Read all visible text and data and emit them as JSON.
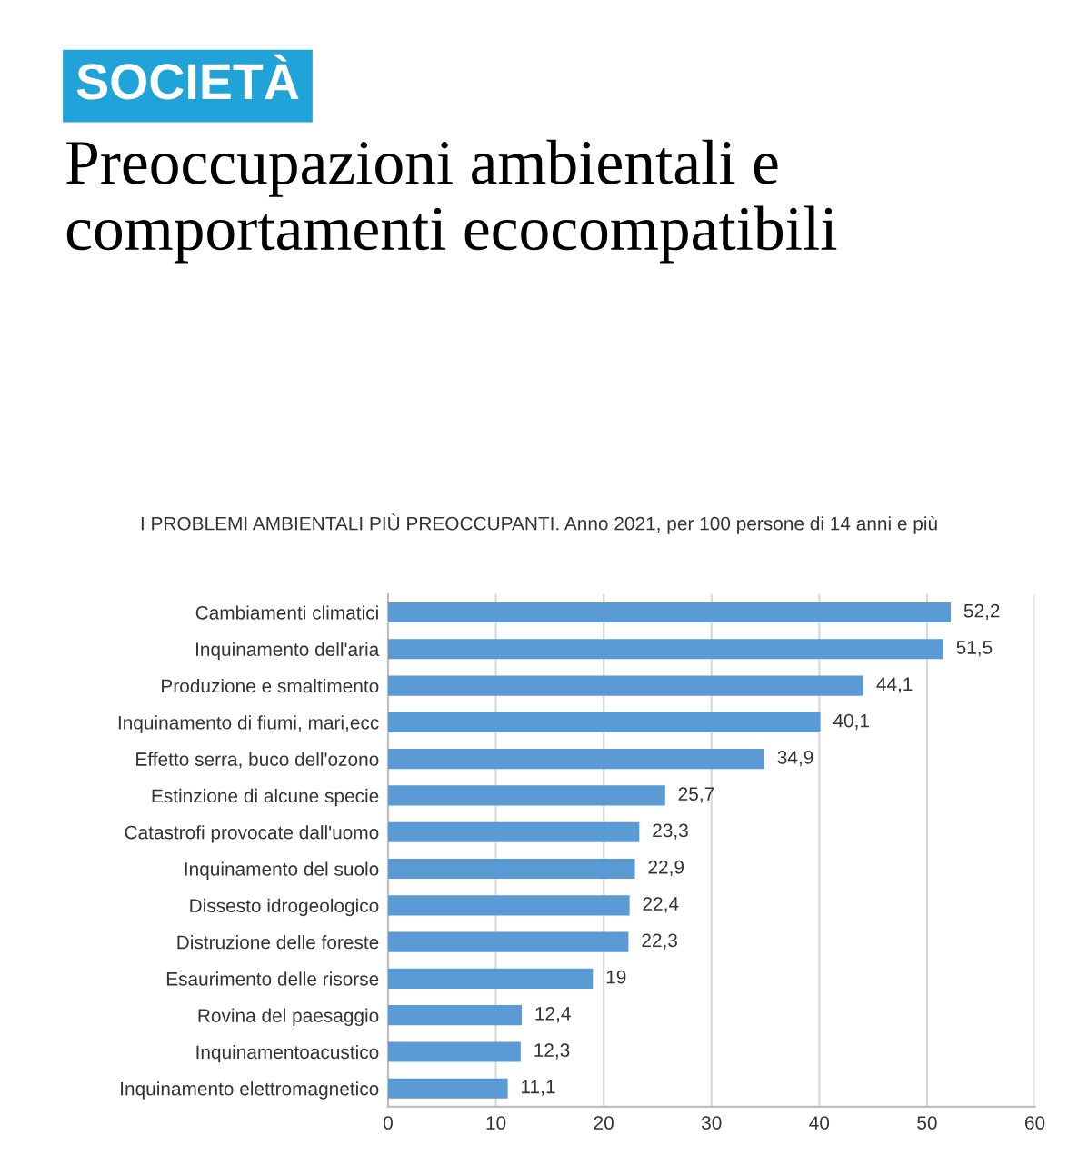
{
  "chart_data": {
    "type": "bar",
    "orientation": "horizontal",
    "title": "Preoccupazioni ambientali e comportamenti ecocompatibili",
    "subtitle": "I PROBLEMI AMBIENTALI PIÙ PREOCCUPANTI. Anno 2021, per 100 persone di 14 anni e più",
    "annotations": [
      "SOCIETÀ"
    ],
    "categories": [
      "Cambiamenti climatici",
      "Inquinamento dell'aria",
      "Produzione e smaltimento",
      "Inquinamento di fiumi, mari,ecc",
      "Effetto serra, buco dell'ozono",
      "Estinzione di alcune specie",
      "Catastrofi provocate dall'uomo",
      "Inquinamento del suolo",
      "Dissesto idrogeologico",
      "Distruzione delle foreste",
      "Esaurimento delle risorse",
      "Rovina del paesaggio",
      "Inquinamentoacustico",
      "Inquinamento elettromagnetico"
    ],
    "values": [
      52.2,
      51.5,
      44.1,
      40.1,
      34.9,
      25.7,
      23.3,
      22.9,
      22.4,
      22.3,
      19,
      12.4,
      12.3,
      11.1
    ],
    "value_labels": [
      "52,2",
      "51,5",
      "44,1",
      "40,1",
      "34,9",
      "25,7",
      "23,3",
      "22,9",
      "22,4",
      "22,3",
      "19",
      "12,4",
      "12,3",
      "11,1"
    ],
    "color": "#5b9bd5",
    "xlim": [
      0,
      60
    ],
    "xticks": [
      0,
      10,
      20,
      30,
      40,
      50,
      60
    ],
    "grid": "x"
  }
}
